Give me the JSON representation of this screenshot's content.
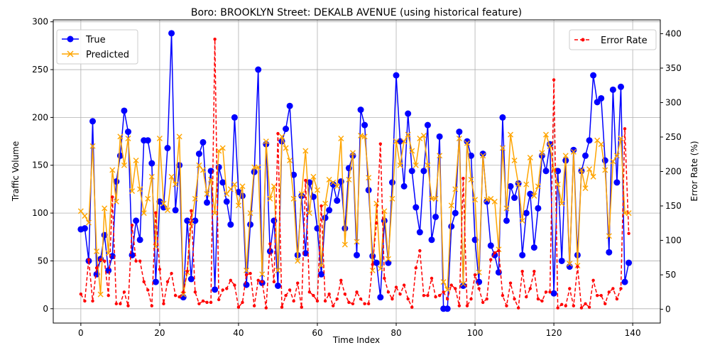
{
  "chart_data": {
    "type": "line",
    "title": "Boro: BROOKLYN Street: DEKALB AVENUE (using historical feature)",
    "xlabel": "Time Index",
    "ylabel": "Traffic Volume",
    "y2label": "Error Rate (%)",
    "xlim": [
      -7,
      147
    ],
    "ylim": [
      -15,
      302
    ],
    "y2lim": [
      -20,
      420
    ],
    "xticks": [
      0,
      20,
      40,
      60,
      80,
      100,
      120,
      140
    ],
    "yticks": [
      0,
      50,
      100,
      150,
      200,
      250,
      300
    ],
    "y2ticks": [
      0,
      50,
      100,
      150,
      200,
      250,
      300,
      350,
      400
    ],
    "grid": true,
    "legend_left": {
      "placement": "top-left",
      "entries": [
        "True",
        "Predicted"
      ]
    },
    "legend_right": {
      "placement": "top-right",
      "entries": [
        "Error Rate"
      ]
    },
    "series": [
      {
        "name": "True",
        "axis": "left",
        "color": "#0000ff",
        "marker": "circle",
        "style": "solid",
        "values": [
          83,
          84,
          50,
          196,
          36,
          52,
          77,
          40,
          55,
          133,
          160,
          207,
          185,
          56,
          92,
          72,
          176,
          176,
          152,
          28,
          112,
          106,
          168,
          288,
          103,
          150,
          12,
          92,
          31,
          92,
          162,
          174,
          111,
          144,
          20,
          148,
          132,
          112,
          88,
          200,
          122,
          118,
          25,
          88,
          143,
          250,
          27,
          172,
          60,
          92,
          24,
          175,
          188,
          212,
          140,
          56,
          118,
          58,
          132,
          117,
          84,
          36,
          95,
          103,
          130,
          113,
          133,
          84,
          147,
          160,
          56,
          208,
          192,
          124,
          55,
          48,
          12,
          92,
          48,
          132,
          244,
          175,
          128,
          204,
          144,
          106,
          80,
          144,
          192,
          72,
          96,
          180,
          0,
          0,
          86,
          100,
          185,
          24,
          175,
          160,
          72,
          28,
          162,
          112,
          66,
          56,
          38,
          200,
          92,
          128,
          116,
          131,
          56,
          100,
          120,
          64,
          105,
          160,
          144,
          172,
          16,
          144,
          50,
          155,
          44,
          166,
          56,
          144,
          160,
          176,
          244,
          216,
          220,
          155,
          59,
          229,
          132,
          232,
          28,
          48
        ]
      },
      {
        "name": "Predicted",
        "axis": "left",
        "color": "#ffa500",
        "marker": "x",
        "style": "solid",
        "values": [
          102,
          97,
          90,
          170,
          60,
          15,
          105,
          58,
          145,
          112,
          180,
          150,
          178,
          123,
          155,
          125,
          100,
          115,
          138,
          65,
          178,
          110,
          103,
          138,
          130,
          180,
          15,
          38,
          90,
          115,
          150,
          145,
          120,
          135,
          100,
          165,
          168,
          120,
          125,
          130,
          108,
          128,
          40,
          100,
          148,
          148,
          36,
          175,
          115,
          128,
          40,
          180,
          168,
          155,
          115,
          50,
          120,
          165,
          100,
          138,
          124,
          45,
          110,
          135,
          132,
          128,
          178,
          67,
          135,
          163,
          70,
          181,
          180,
          137,
          40,
          110,
          42,
          102,
          52,
          115,
          175,
          150,
          175,
          182,
          165,
          150,
          178,
          181,
          150,
          115,
          115,
          160,
          28,
          20,
          108,
          125,
          178,
          26,
          173,
          135,
          114,
          38,
          160,
          114,
          115,
          112,
          62,
          168,
          105,
          182,
          155,
          130,
          92,
          130,
          158,
          118,
          128,
          163,
          182,
          170,
          145,
          130,
          110,
          160,
          47,
          164,
          45,
          145,
          126,
          146,
          138,
          176,
          172,
          145,
          76,
          154,
          160,
          178,
          100,
          100
        ]
      },
      {
        "name": "Error Rate",
        "axis": "right",
        "color": "#ff0000",
        "marker": "dot",
        "style": "dashed",
        "values": [
          22,
          12,
          72,
          12,
          60,
          72,
          70,
          20,
          163,
          8,
          8,
          25,
          5,
          122,
          70,
          70,
          40,
          28,
          5,
          140,
          58,
          8,
          40,
          52,
          20,
          18,
          25,
          55,
          143,
          25,
          8,
          12,
          10,
          10,
          392,
          14,
          28,
          30,
          42,
          35,
          3,
          10,
          50,
          52,
          5,
          42,
          40,
          2,
          95,
          40,
          255,
          3,
          20,
          28,
          12,
          38,
          3,
          187,
          25,
          20,
          12,
          150,
          12,
          22,
          5,
          15,
          42,
          22,
          10,
          8,
          25,
          15,
          8,
          8,
          65,
          125,
          240,
          45,
          25,
          15,
          32,
          22,
          35,
          15,
          3,
          60,
          85,
          20,
          20,
          45,
          18,
          20,
          25,
          15,
          35,
          30,
          5,
          190,
          5,
          15,
          50,
          30,
          10,
          15,
          72,
          82,
          85,
          20,
          5,
          38,
          15,
          2,
          55,
          18,
          30,
          55,
          15,
          12,
          25,
          25,
          333,
          2,
          7,
          5,
          30,
          5,
          62,
          2,
          8,
          3,
          42,
          20,
          20,
          8,
          25,
          30,
          15,
          30,
          262,
          110
        ]
      }
    ]
  }
}
